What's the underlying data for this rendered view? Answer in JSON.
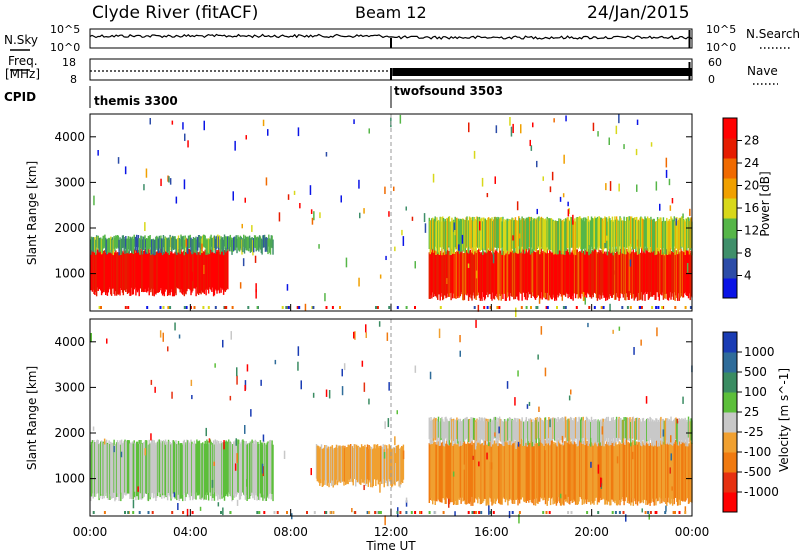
{
  "header": {
    "station": "Clyde River (fitACF)",
    "beam": "Beam 12",
    "date": "24/Jan/2015"
  },
  "noise_panel": {
    "left_label": "N.Sky",
    "right_label": "N.Search",
    "left_ticks": [
      "10^5",
      "10^0"
    ],
    "right_ticks": [
      "10^5",
      "10^0"
    ]
  },
  "freq_panel": {
    "left_label_1": "Freq.",
    "left_label_2": "[MHz]",
    "left_ticks": [
      "18",
      "8"
    ],
    "right_label": "Nave",
    "right_ticks": [
      "60",
      "0"
    ]
  },
  "cpid_panel": {
    "label": "CPID",
    "modes": [
      {
        "name": "themis 3300",
        "start_hour": 0
      },
      {
        "name": "twofsound 3503",
        "start_hour": 12
      }
    ]
  },
  "power_panel": {
    "ylabel": "Slant Range [km]",
    "yticks": [
      "1000",
      "2000",
      "3000",
      "4000"
    ],
    "colorbar_label": "Power [dB]",
    "colorbar_ticks": [
      "4",
      "8",
      "12",
      "16",
      "20",
      "24",
      "28"
    ],
    "colors": [
      "#0a14e6",
      "#2c4ca8",
      "#3f8f6a",
      "#56b648",
      "#d8d81a",
      "#f0a000",
      "#f06a00",
      "#e61c00",
      "#ff0000"
    ]
  },
  "velocity_panel": {
    "ylabel": "Slant Range [km]",
    "yticks": [
      "1000",
      "2000",
      "3000",
      "4000"
    ],
    "colorbar_label": "Velocity [m s^-1]",
    "colorbar_ticks": [
      "1000",
      "500",
      "100",
      "25",
      "-25",
      "-100",
      "-500",
      "-1000"
    ],
    "colors": [
      "#1a3cb4",
      "#2f6c9a",
      "#3a8c62",
      "#5cbf3a",
      "#c8c8c8",
      "#f0a030",
      "#f07a10",
      "#e63010",
      "#ff0000"
    ]
  },
  "x_axis": {
    "label": "Time UT",
    "ticks": [
      "00:00",
      "04:00",
      "08:00",
      "12:00",
      "16:00",
      "20:00",
      "00:00"
    ]
  },
  "chart_data": [
    {
      "type": "heatmap",
      "title": "",
      "xlabel": "Time UT",
      "ylabel": "Slant Range [km]",
      "xlim": [
        0,
        24
      ],
      "ylim": [
        180,
        4500
      ],
      "zlabel": "Power [dB]",
      "zlim": [
        0,
        30
      ],
      "features": [
        {
          "t_start": 0.0,
          "t_end": 5.5,
          "range_low": 600,
          "range_high": 1500,
          "value": 28
        },
        {
          "t_start": 0.0,
          "t_end": 7.3,
          "range_low": 1500,
          "range_high": 1800,
          "value": 10
        },
        {
          "t_start": 13.5,
          "t_end": 24.0,
          "range_low": 500,
          "range_high": 1500,
          "value": 26
        },
        {
          "t_start": 13.5,
          "t_end": 24.0,
          "range_low": 1500,
          "range_high": 2200,
          "value": 14
        }
      ]
    },
    {
      "type": "heatmap",
      "title": "",
      "xlabel": "Time UT",
      "ylabel": "Slant Range [km]",
      "xlim": [
        0,
        24
      ],
      "ylim": [
        180,
        4500
      ],
      "zlabel": "Velocity [m s^-1]",
      "zlim": [
        -1000,
        1000
      ],
      "features": [
        {
          "t_start": 0.0,
          "t_end": 7.3,
          "range_low": 600,
          "range_high": 1800,
          "value": 100
        },
        {
          "t_start": 9.0,
          "t_end": 12.5,
          "range_low": 900,
          "range_high": 1700,
          "value": -200
        },
        {
          "t_start": 13.5,
          "t_end": 24.0,
          "range_low": 500,
          "range_high": 1800,
          "value": -300
        },
        {
          "t_start": 13.5,
          "t_end": 24.0,
          "range_low": 1800,
          "range_high": 2300,
          "value": 0
        }
      ]
    }
  ]
}
